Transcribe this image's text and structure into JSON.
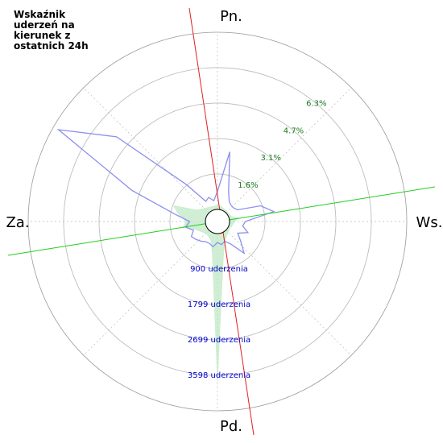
{
  "chart_data": {
    "type": "polar",
    "title": "Wskaźnik uderzeń na kierunek z ostatnich 24h",
    "x": [
      0,
      10,
      20,
      30,
      40,
      50,
      60,
      70,
      80,
      90,
      100,
      110,
      120,
      130,
      140,
      150,
      160,
      170,
      180,
      190,
      200,
      210,
      220,
      230,
      240,
      250,
      260,
      270,
      280,
      290,
      300,
      310,
      320,
      330,
      340,
      350
    ],
    "xlim": [
      0,
      360
    ],
    "xticks": [
      {
        "value": 0,
        "label": "Pn."
      },
      {
        "value": 90,
        "label": "Ws."
      },
      {
        "value": 180,
        "label": "Pd."
      },
      {
        "value": 270,
        "label": "Za."
      }
    ],
    "ylim": [
      0,
      7.85
    ],
    "yticks": [
      {
        "value": 1.57,
        "label": "1.6%"
      },
      {
        "value": 3.14,
        "label": "3.1%"
      },
      {
        "value": 4.71,
        "label": "4.7%"
      },
      {
        "value": 6.28,
        "label": "6.3%"
      }
    ],
    "y2lim": [
      0,
      4497.5
    ],
    "y2ticks": [
      {
        "value": 900,
        "label": "900 uderzenia"
      },
      {
        "value": 1799,
        "label": "1799 uderzenia"
      },
      {
        "value": 2699,
        "label": "2699 uderzenia"
      },
      {
        "value": 3598,
        "label": "3598 uderzenia"
      }
    ],
    "grid": true,
    "series": [
      {
        "color": "#8c8ff0",
        "kind": "line",
        "values": [
          0.8,
          2.6,
          0.9,
          0.5,
          0.4,
          0.4,
          0.5,
          1.5,
          2.0,
          0.7,
          0.6,
          0.9,
          0.5,
          0.8,
          1.3,
          0.6,
          0.4,
          0.5,
          0.4,
          0.6,
          0.5,
          0.5,
          0.6,
          0.7,
          0.8,
          0.6,
          0.9,
          0.7,
          1.4,
          3.5,
          7.6,
          5.3,
          1.6,
          0.5,
          0.6,
          0.4
        ]
      },
      {
        "color": "#bfe8c4",
        "kind": "area",
        "axis": "y2",
        "values": [
          120,
          100,
          80,
          60,
          60,
          50,
          60,
          80,
          250,
          150,
          100,
          80,
          60,
          80,
          100,
          150,
          250,
          600,
          3900,
          500,
          200,
          150,
          120,
          150,
          200,
          300,
          600,
          500,
          700,
          900,
          300,
          200,
          150,
          120,
          100,
          100
        ]
      }
    ]
  }
}
